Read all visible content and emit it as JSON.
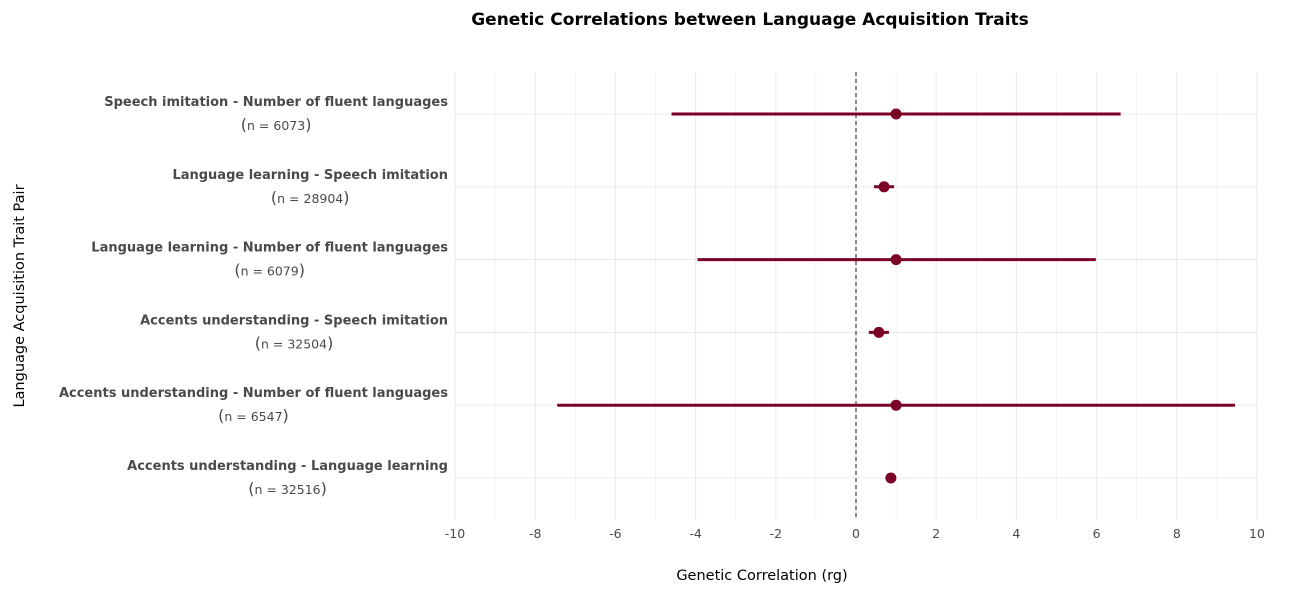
{
  "chart_data": {
    "type": "scatter",
    "title": "Genetic Correlations between Language Acquisition Traits",
    "xlabel": "Genetic Correlation (rg)",
    "ylabel": "Language Acquisition Trait Pair",
    "xlim": [
      -10,
      10
    ],
    "xticks": [
      "-10",
      "-8",
      "-6",
      "-4",
      "-2",
      "0",
      "2",
      "4",
      "6",
      "8",
      "10"
    ],
    "reference_line_x": 0,
    "grid": true,
    "colors": {
      "point": "#7a0026",
      "ci": "#7a0026",
      "grid": "#ebebeb",
      "refline": "#444444"
    },
    "categories": [
      {
        "label": "Speech imitation - Number of fluent languages",
        "n": "n = 6073",
        "rg": 1.0,
        "ci_low": -4.6,
        "ci_high": 6.6
      },
      {
        "label": "Language learning - Speech imitation",
        "n": "n = 28904",
        "rg": 0.7,
        "ci_low": 0.45,
        "ci_high": 0.95
      },
      {
        "label": "Language learning - Number of fluent languages",
        "n": "n = 6079",
        "rg": 1.0,
        "ci_low": -3.95,
        "ci_high": 5.98
      },
      {
        "label": "Accents understanding - Speech imitation",
        "n": "n = 32504",
        "rg": 0.57,
        "ci_low": 0.32,
        "ci_high": 0.82
      },
      {
        "label": "Accents understanding - Number of fluent languages",
        "n": "n = 6547",
        "rg": 1.0,
        "ci_low": -7.45,
        "ci_high": 9.45
      },
      {
        "label": "Accents understanding - Language learning",
        "n": "n = 32516",
        "rg": 0.87,
        "ci_low": 0.78,
        "ci_high": 0.97
      }
    ]
  }
}
